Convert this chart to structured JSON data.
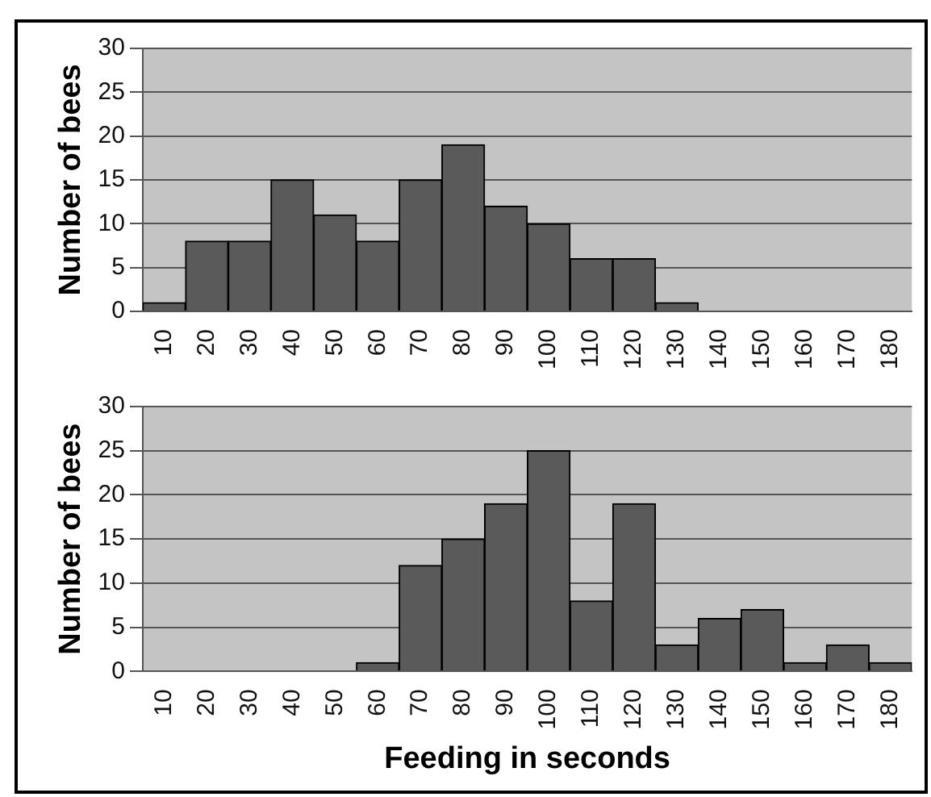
{
  "chart_data": [
    {
      "type": "bar",
      "ylabel": "Number of bees",
      "categories": [
        "10",
        "20",
        "30",
        "40",
        "50",
        "60",
        "70",
        "80",
        "90",
        "100",
        "110",
        "120",
        "130",
        "140",
        "150",
        "160",
        "170",
        "180"
      ],
      "values": [
        1,
        8,
        8,
        15,
        11,
        8,
        15,
        19,
        12,
        10,
        6,
        6,
        1,
        0,
        0,
        0,
        0,
        0
      ],
      "color": "#5a5a5a",
      "ylim": [
        0,
        30
      ],
      "yticks": [
        0,
        5,
        10,
        15,
        20,
        25,
        30
      ],
      "grid": "y",
      "legend": false
    },
    {
      "type": "bar",
      "ylabel": "Number of bees",
      "xlabel": "Feeding in seconds",
      "categories": [
        "10",
        "20",
        "30",
        "40",
        "50",
        "60",
        "70",
        "80",
        "90",
        "100",
        "110",
        "120",
        "130",
        "140",
        "150",
        "160",
        "170",
        "180"
      ],
      "values": [
        0,
        0,
        0,
        0,
        0,
        1,
        12,
        15,
        19,
        25,
        8,
        19,
        3,
        6,
        7,
        1,
        3,
        1
      ],
      "color": "#5a5a5a",
      "ylim": [
        0,
        30
      ],
      "yticks": [
        0,
        5,
        10,
        15,
        20,
        25,
        30
      ],
      "grid": "y",
      "legend": false
    }
  ]
}
